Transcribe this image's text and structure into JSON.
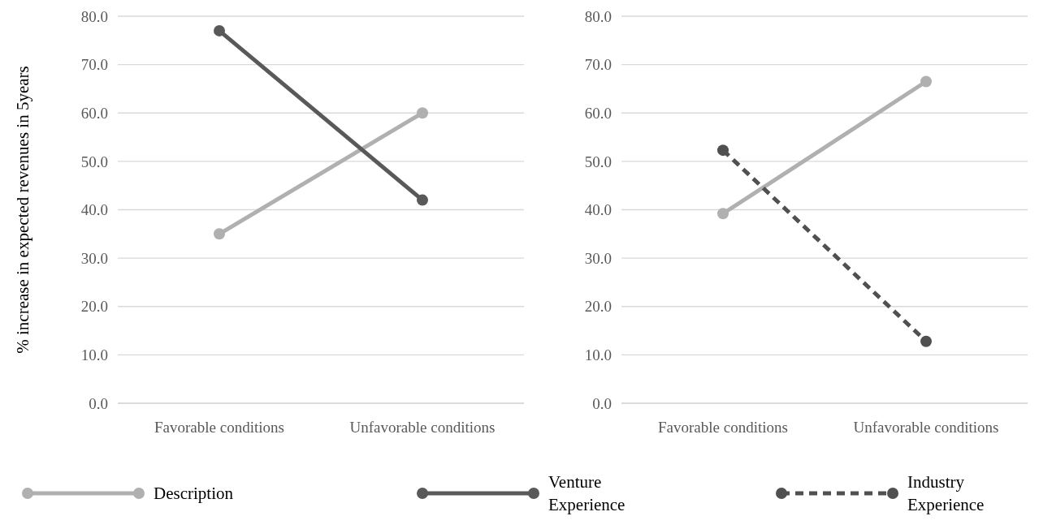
{
  "chart_data": [
    {
      "type": "line",
      "ylabel": "% increase in expected revenues in 5years",
      "categories": [
        "Favorable conditions",
        "Unfavorable conditions"
      ],
      "ylim": [
        0,
        80
      ],
      "yticks": [
        {
          "value": 0,
          "label": "0.0"
        },
        {
          "value": 10,
          "label": "10.0"
        },
        {
          "value": 20,
          "label": "20.0"
        },
        {
          "value": 30,
          "label": "30.0"
        },
        {
          "value": 40,
          "label": "40.0"
        },
        {
          "value": 50,
          "label": "50.0"
        },
        {
          "value": 60,
          "label": "60.0"
        },
        {
          "value": 70,
          "label": "70.0"
        },
        {
          "value": 80,
          "label": "80.0"
        }
      ],
      "grid": "y",
      "legend": "bottom",
      "marker": "circle",
      "series": [
        {
          "name": "Description",
          "color": "#b0b0b0",
          "values": [
            35.0,
            60.0
          ]
        },
        {
          "name": "Venture Experience",
          "color": "#595959",
          "values": [
            77.0,
            42.0
          ]
        }
      ]
    },
    {
      "type": "line",
      "categories": [
        "Favorable conditions",
        "Unfavorable conditions"
      ],
      "ylim": [
        0,
        80
      ],
      "yticks": [
        {
          "value": 0,
          "label": "0.0"
        },
        {
          "value": 10,
          "label": "10.0"
        },
        {
          "value": 20,
          "label": "20.0"
        },
        {
          "value": 30,
          "label": "30.0"
        },
        {
          "value": 40,
          "label": "40.0"
        },
        {
          "value": 50,
          "label": "50.0"
        },
        {
          "value": 60,
          "label": "60.0"
        },
        {
          "value": 70,
          "label": "70.0"
        },
        {
          "value": 80,
          "label": "80.0"
        }
      ],
      "grid": "y",
      "legend": "bottom",
      "marker": "circle",
      "series": [
        {
          "name": "Description",
          "color": "#b0b0b0",
          "values": [
            39.2,
            66.5
          ]
        },
        {
          "name": "Industry Experience",
          "color": "#505050",
          "values": [
            52.3,
            12.8
          ],
          "line_style": "dashed"
        }
      ]
    }
  ]
}
